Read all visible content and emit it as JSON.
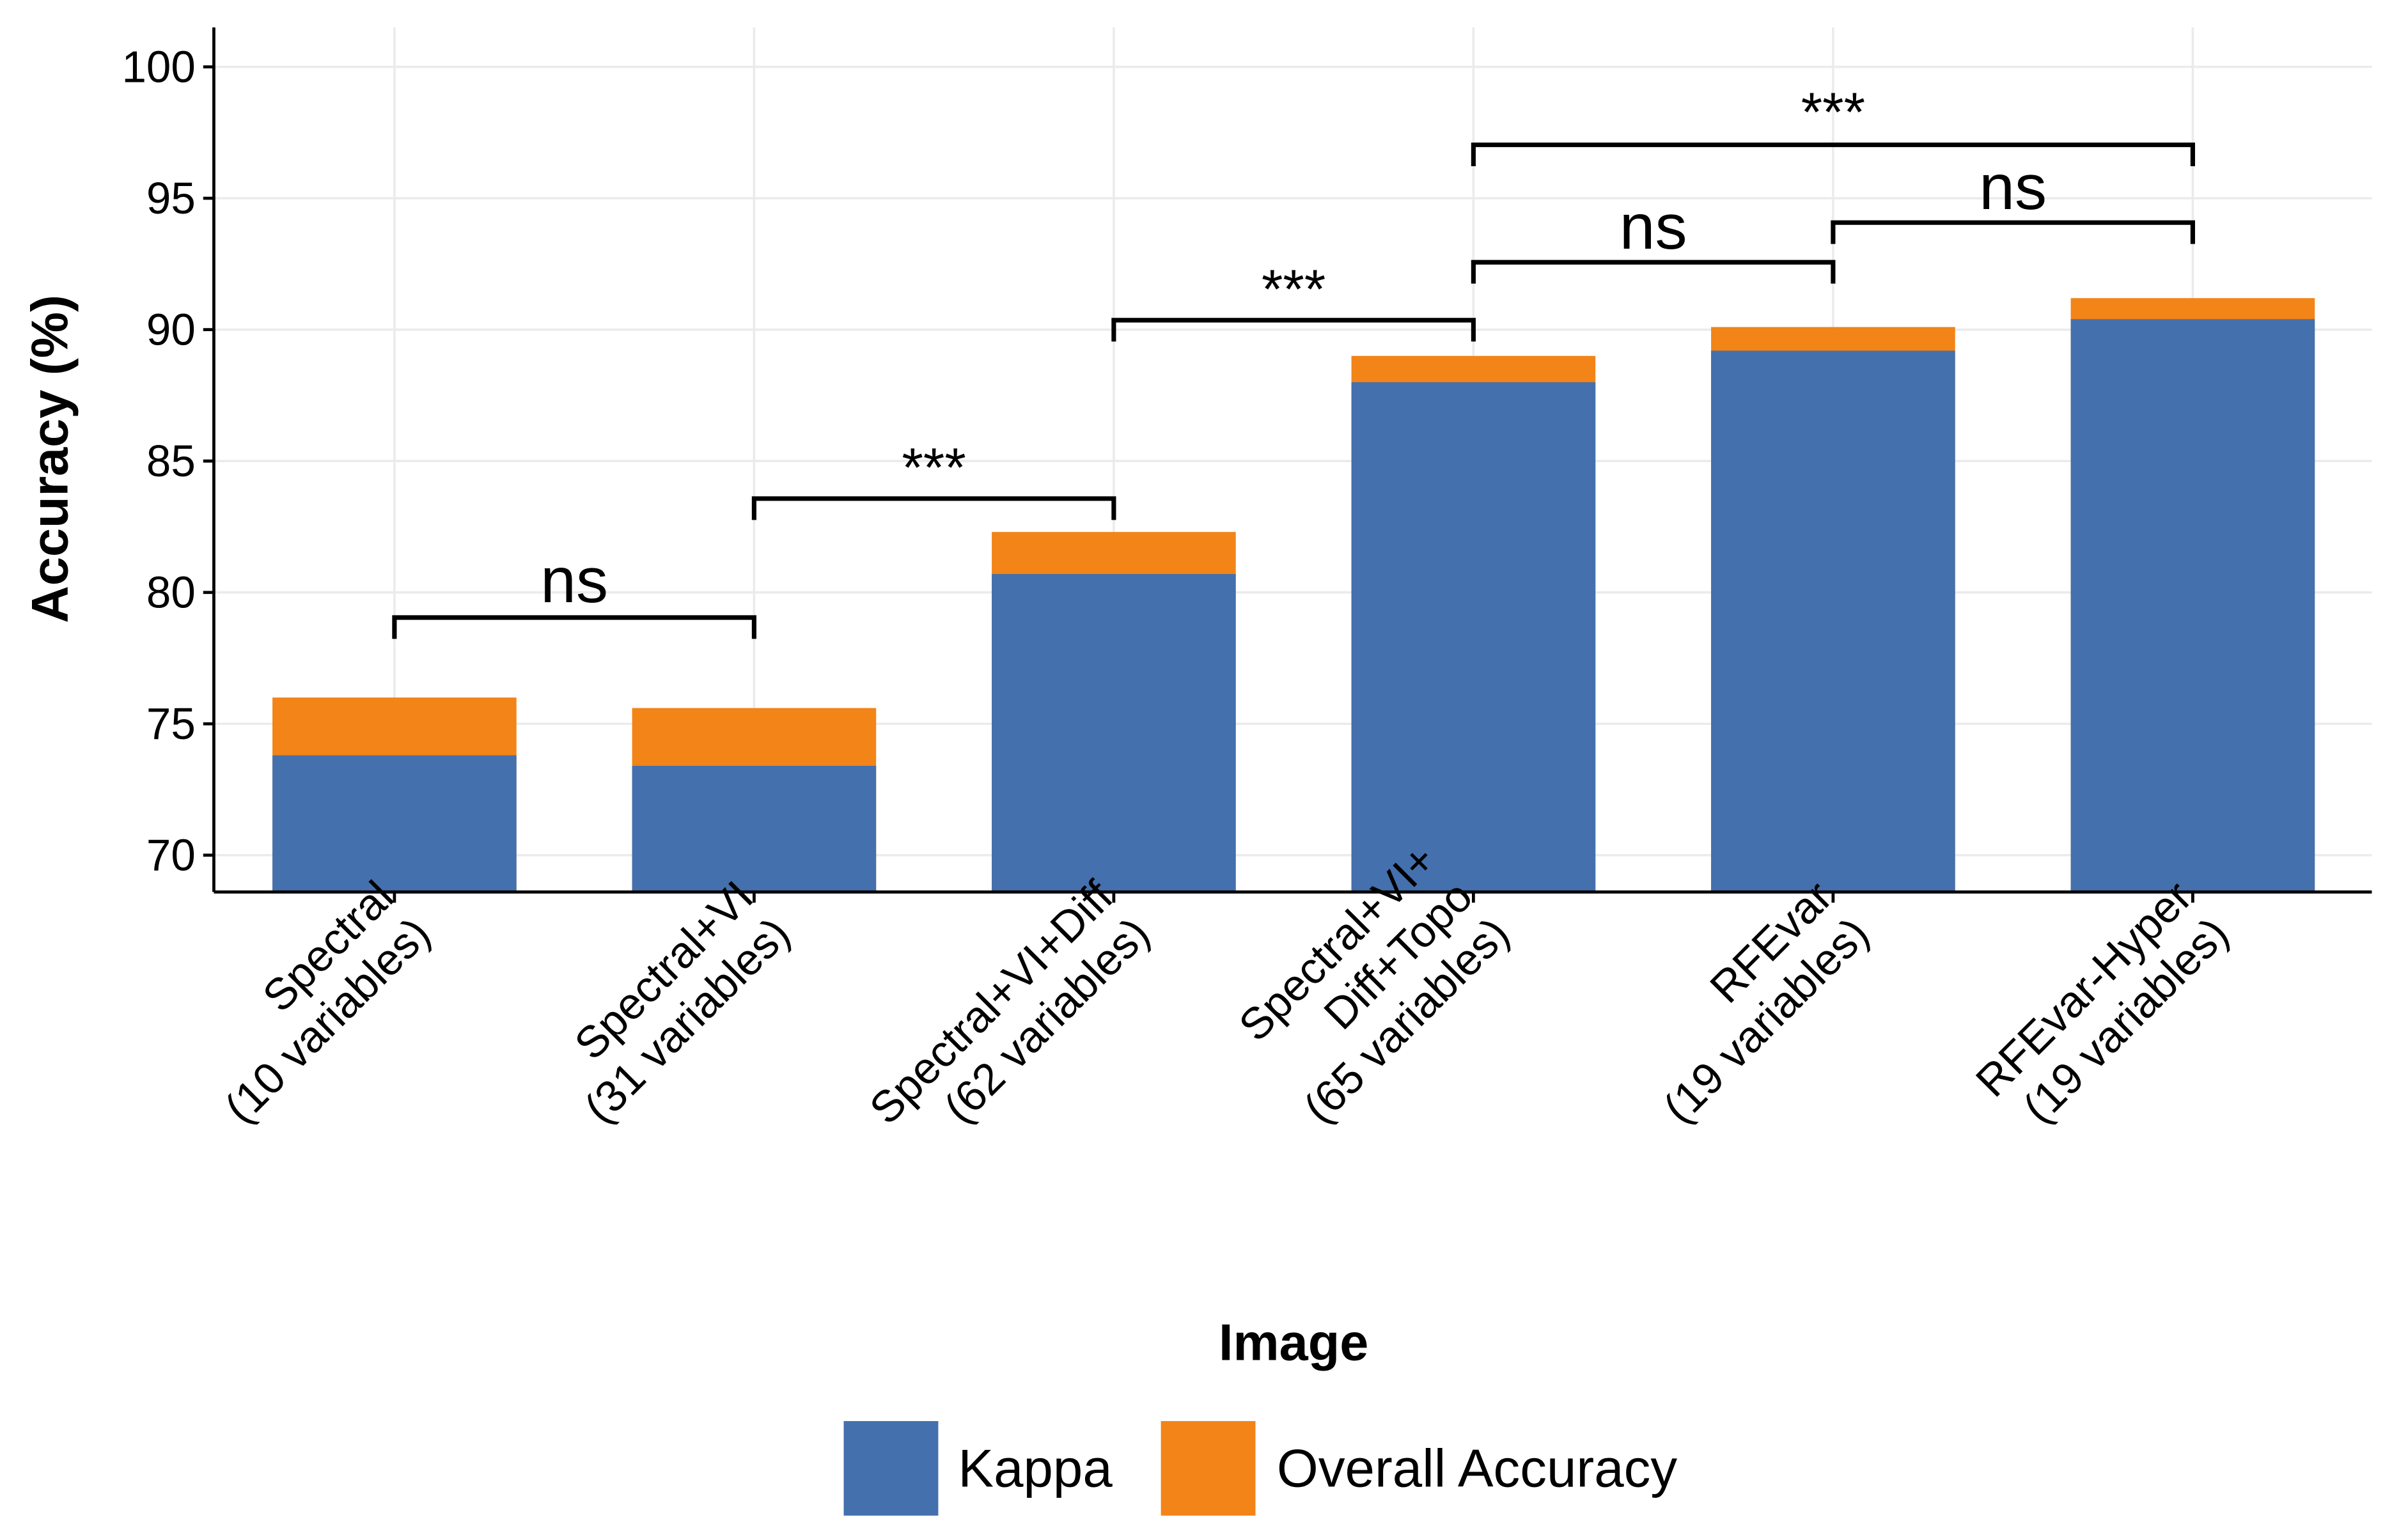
{
  "chart_data": {
    "type": "bar",
    "x_label": "Image",
    "y_label": "Accuracy (%)",
    "categories": [
      "Spectral\n(10 variables)",
      "Spectral+VI\n(31 variables)",
      "Spectral+VI+Diff\n(62 variables)",
      "Spectral+VI+\nDiff+Topo\n(65 variables)",
      "RFEvar\n(19 variables)",
      "RFEvar-Hyper\n(19 variables)"
    ],
    "series": [
      {
        "name": "Overall Accuracy",
        "color": "#f28418",
        "values": [
          76.0,
          75.6,
          82.3,
          89.0,
          90.1,
          91.2
        ]
      },
      {
        "name": "Kappa",
        "color": "#4470ad",
        "values": [
          73.8,
          73.4,
          80.7,
          88.0,
          89.2,
          90.4
        ]
      }
    ],
    "legend_order": [
      1,
      0
    ],
    "ylim": [
      68.6,
      101.5
    ],
    "yticks": [
      70,
      75,
      80,
      85,
      90,
      95,
      100
    ],
    "grid": true,
    "legend": "bottom",
    "comparisons": [
      {
        "from": 0,
        "to": 1,
        "label": "ns"
      },
      {
        "from": 1,
        "to": 2,
        "label": "***"
      },
      {
        "from": 2,
        "to": 3,
        "label": "***"
      },
      {
        "from": 3,
        "to": 4,
        "label": "ns"
      },
      {
        "from": 4,
        "to": 5,
        "label": "ns"
      },
      {
        "from": 3,
        "to": 5,
        "label": "***"
      }
    ]
  }
}
